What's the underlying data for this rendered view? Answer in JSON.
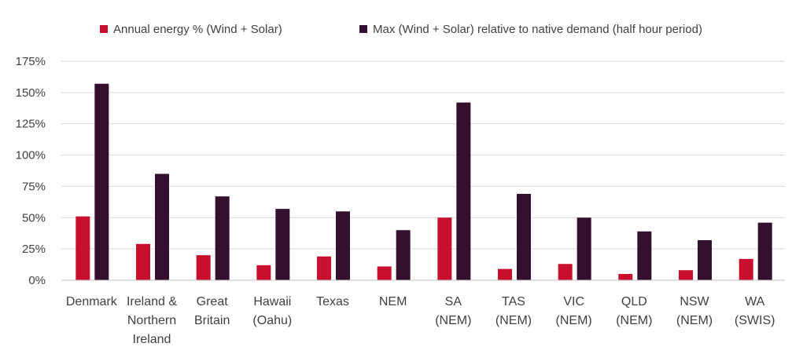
{
  "chart_data": {
    "type": "bar",
    "title": "",
    "xlabel": "",
    "ylabel": "",
    "ylim": [
      0,
      175
    ],
    "y_ticks": [
      "0%",
      "25%",
      "50%",
      "75%",
      "100%",
      "125%",
      "150%",
      "175%"
    ],
    "y_tick_values": [
      0,
      25,
      50,
      75,
      100,
      125,
      150,
      175
    ],
    "grid": "horizontal",
    "legend_position": "top",
    "categories": [
      [
        "Denmark"
      ],
      [
        "Ireland &",
        "Northern",
        "Ireland"
      ],
      [
        "Great",
        "Britain"
      ],
      [
        "Hawaii",
        "(Oahu)"
      ],
      [
        "Texas"
      ],
      [
        "NEM"
      ],
      [
        "SA",
        "(NEM)"
      ],
      [
        "TAS",
        "(NEM)"
      ],
      [
        "VIC",
        "(NEM)"
      ],
      [
        "QLD",
        "(NEM)"
      ],
      [
        "NSW",
        "(NEM)"
      ],
      [
        "WA",
        "(SWIS)"
      ]
    ],
    "series": [
      {
        "name": "Annual energy % (Wind + Solar)",
        "color": "#c8102e",
        "values": [
          51,
          29,
          20,
          12,
          19,
          11,
          50,
          9,
          13,
          5,
          8,
          17
        ]
      },
      {
        "name": "Max (Wind + Solar) relative to native demand (half hour period)",
        "color": "#34102e",
        "values": [
          157,
          85,
          67,
          57,
          55,
          40,
          142,
          69,
          50,
          39,
          32,
          46
        ]
      }
    ]
  }
}
